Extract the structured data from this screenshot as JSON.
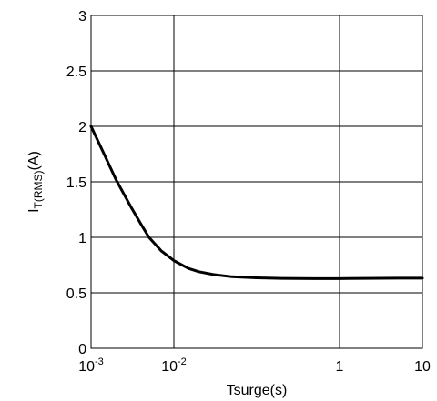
{
  "chart_data": {
    "type": "line",
    "xlabel": "Tsurge(s)",
    "ylabel": {
      "main": "I",
      "subscript": "T(RMS)",
      "suffix": "(A)"
    },
    "x_scale": "log",
    "xlim": [
      0.001,
      10
    ],
    "ylim": [
      0,
      3
    ],
    "grid": true,
    "x_ticks": [
      {
        "value": 0.001,
        "base": "10",
        "exp": "-3",
        "label": "10^-3"
      },
      {
        "value": 0.01,
        "base": "10",
        "exp": "-2",
        "label": "10^-2"
      },
      {
        "value": 1,
        "base": "1",
        "exp": "",
        "label": "1"
      },
      {
        "value": 10,
        "base": "10",
        "exp": "",
        "label": "10"
      }
    ],
    "y_ticks": [
      {
        "value": 0,
        "label": "0"
      },
      {
        "value": 0.5,
        "label": "0.5"
      },
      {
        "value": 1,
        "label": "1"
      },
      {
        "value": 1.5,
        "label": "1.5"
      },
      {
        "value": 2,
        "label": "2"
      },
      {
        "value": 2.5,
        "label": "2.5"
      },
      {
        "value": 3,
        "label": "3"
      }
    ],
    "series": [
      {
        "x": [
          0.001,
          0.0015,
          0.002,
          0.003,
          0.004,
          0.005,
          0.007,
          0.01,
          0.015,
          0.02,
          0.03,
          0.05,
          0.07,
          0.1,
          0.2,
          0.5,
          1,
          2,
          5,
          10
        ],
        "y": [
          2.0,
          1.72,
          1.52,
          1.28,
          1.12,
          1.0,
          0.88,
          0.79,
          0.72,
          0.69,
          0.665,
          0.645,
          0.64,
          0.635,
          0.63,
          0.628,
          0.628,
          0.63,
          0.632,
          0.632
        ]
      }
    ]
  }
}
